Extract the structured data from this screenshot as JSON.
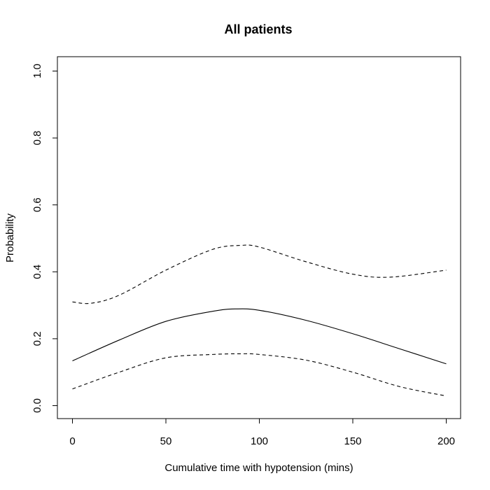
{
  "chart_data": {
    "type": "line",
    "title": "All patients",
    "xlabel": "Cumulative time with hypotension (mins)",
    "ylabel": "Probability",
    "xlim": [
      0,
      200
    ],
    "ylim": [
      0,
      1
    ],
    "x_ticks": [
      0,
      50,
      100,
      150,
      200
    ],
    "x_tick_labels": [
      "0",
      "50",
      "100",
      "150",
      "200"
    ],
    "y_ticks": [
      0,
      0.2,
      0.4,
      0.6,
      0.8,
      1.0
    ],
    "y_tick_labels": [
      "0.0",
      "0.2",
      "0.4",
      "0.6",
      "0.8",
      "1.0"
    ],
    "grid": false,
    "legend": "none",
    "series": [
      {
        "style": "solid",
        "x": [
          0,
          25,
          50,
          75,
          87,
          100,
          125,
          150,
          175,
          200
        ],
        "y": [
          0.134,
          0.196,
          0.252,
          0.282,
          0.289,
          0.285,
          0.255,
          0.215,
          0.17,
          0.125
        ]
      },
      {
        "style": "dashed",
        "x": [
          0,
          10,
          25,
          50,
          75,
          90,
          100,
          125,
          150,
          170,
          200
        ],
        "y": [
          0.31,
          0.306,
          0.33,
          0.405,
          0.467,
          0.479,
          0.474,
          0.43,
          0.393,
          0.384,
          0.405
        ]
      },
      {
        "style": "dashed",
        "x": [
          0,
          25,
          50,
          75,
          90,
          100,
          125,
          150,
          175,
          200
        ],
        "y": [
          0.05,
          0.1,
          0.143,
          0.153,
          0.155,
          0.153,
          0.136,
          0.1,
          0.057,
          0.029
        ]
      }
    ]
  }
}
